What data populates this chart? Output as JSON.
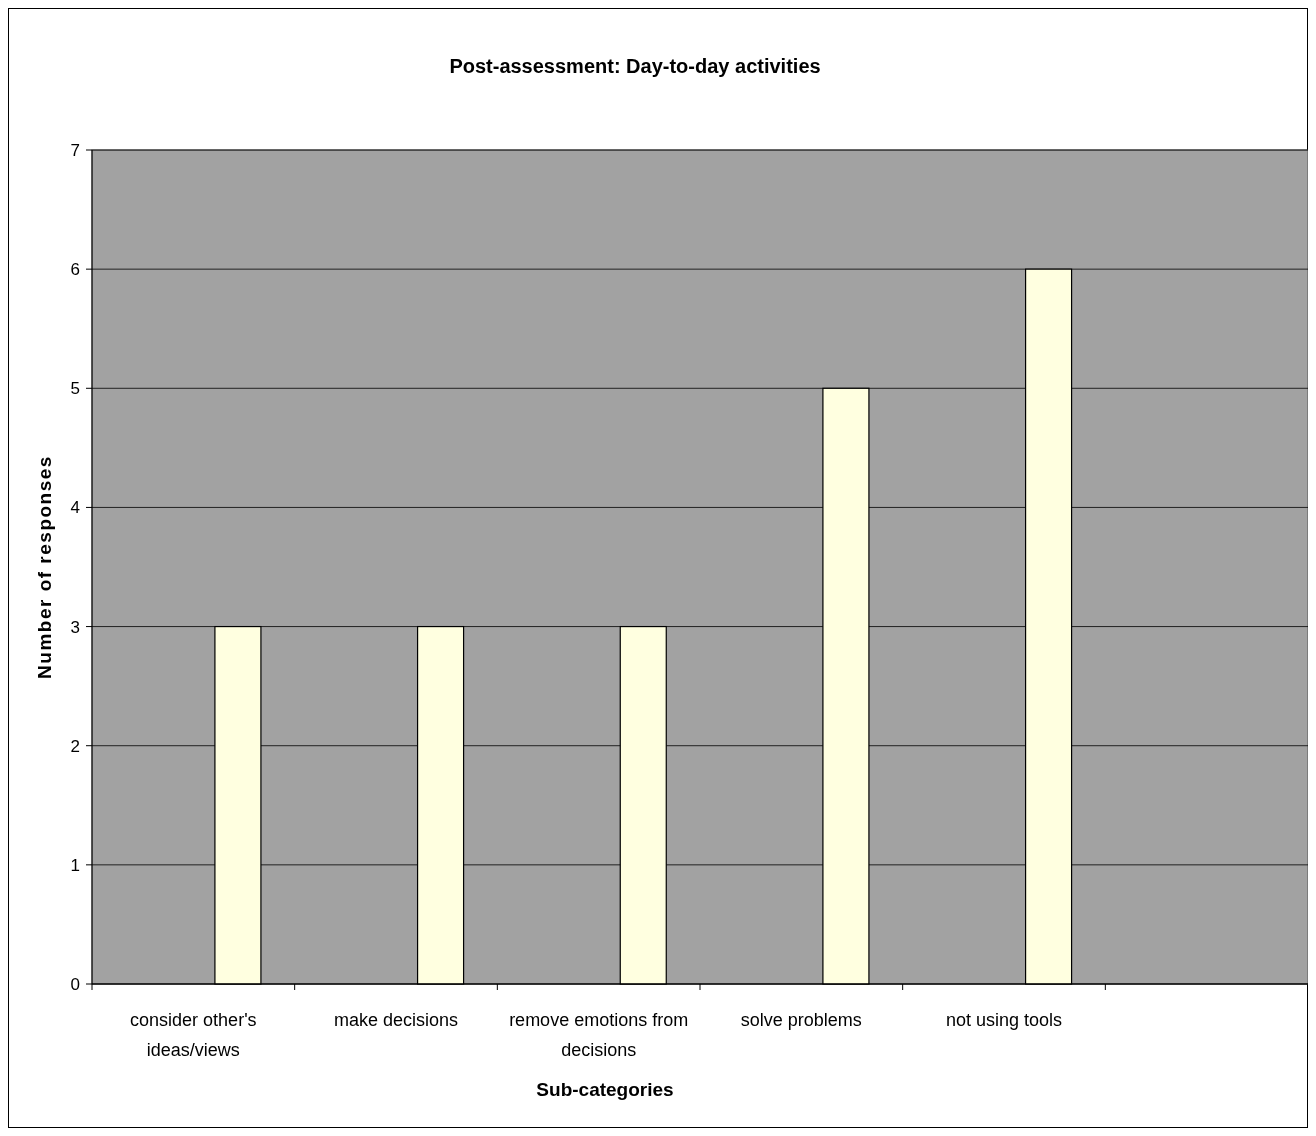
{
  "chart_data": {
    "type": "bar",
    "title": "Post-assessment: Day-to-day activities",
    "xlabel": "Sub-categories",
    "ylabel": "Number of responses",
    "categories": [
      "consider other's ideas/views",
      "make decisions",
      "remove emotions from decisions",
      "solve problems",
      "not using tools",
      null
    ],
    "values": [
      3,
      3,
      3,
      5,
      6,
      null
    ],
    "color": "#ffffe0",
    "ylim": [
      0,
      7
    ],
    "yticks": [
      0,
      1,
      2,
      3,
      4,
      5,
      6,
      7
    ],
    "grid": "y"
  }
}
